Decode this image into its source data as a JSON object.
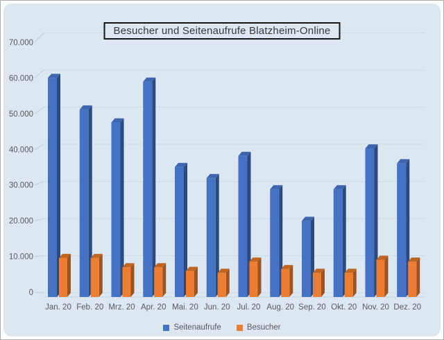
{
  "chart_data": {
    "type": "bar",
    "style": "3d-clustered-column",
    "title": "Besucher und Seitenaufrufe Blatzheim-Online",
    "categories": [
      "Jan. 20",
      "Feb. 20",
      "Mrz. 20",
      "Apr. 20",
      "Mai. 20",
      "Jun. 20",
      "Jul. 20",
      "Aug. 20",
      "Sep. 20",
      "Okt. 20",
      "Nov. 20",
      "Dez. 20"
    ],
    "series": [
      {
        "name": "Seitenaufrufe",
        "color": "#4472C4",
        "color_top": "#3E66AE",
        "color_side": "#2A4A80",
        "values": [
          59000,
          50500,
          47000,
          58000,
          35000,
          32000,
          38000,
          29000,
          20500,
          29000,
          40000,
          36000
        ]
      },
      {
        "name": "Besucher",
        "color": "#ED7D31",
        "color_top": "#C0651F",
        "color_side": "#9C5420",
        "values": [
          10500,
          10500,
          8000,
          8000,
          7000,
          6500,
          9500,
          7500,
          6500,
          6500,
          10000,
          9500
        ]
      }
    ],
    "xlabel": "",
    "ylabel": "",
    "ylim": [
      0,
      70000
    ],
    "y_tick_interval": 10000,
    "y_tick_labels": [
      "70.000",
      "60.000",
      "50.000",
      "40.000",
      "30.000",
      "20.000",
      "10.000",
      "0"
    ],
    "grid": true,
    "legend_position": "bottom"
  },
  "colors": {
    "panel_bg": "#dce7f2",
    "frame_border": "#ababab",
    "gridline": "#cdd9e5",
    "tick": "#bcc9d8",
    "floor_line": "#c5d2df",
    "axis_text": "#595959",
    "title_text": "#3a3a3a",
    "title_border": "#141414"
  }
}
